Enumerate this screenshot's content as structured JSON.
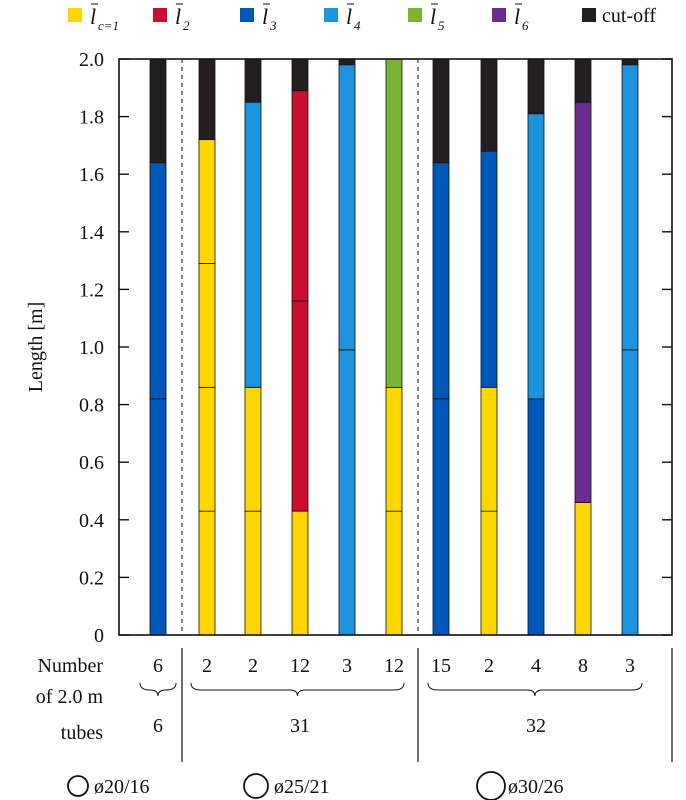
{
  "chart_data": {
    "type": "bar",
    "stacked": true,
    "ylabel": "Length [m]",
    "ylim": [
      0,
      2.0
    ],
    "yticks": [
      "0",
      "0.2",
      "0.4",
      "0.6",
      "0.8",
      "1.0",
      "1.2",
      "1.4",
      "1.6",
      "1.8",
      "2.0"
    ],
    "grid": false,
    "legend_position": "top",
    "legend": [
      {
        "key": "l1",
        "label": "l",
        "sub": "c=1",
        "color": "#FFD500"
      },
      {
        "key": "l2",
        "label": "l",
        "sub": "2",
        "color": "#C8102E"
      },
      {
        "key": "l3",
        "label": "l",
        "sub": "3",
        "color": "#0057B8"
      },
      {
        "key": "l4",
        "label": "l",
        "sub": "4",
        "color": "#1C93DC"
      },
      {
        "key": "l5",
        "label": "l",
        "sub": "5",
        "color": "#7AB532"
      },
      {
        "key": "l6",
        "label": "l",
        "sub": "6",
        "color": "#6A2C8E"
      },
      {
        "key": "cut",
        "label": "cut-off",
        "sub": "",
        "color": "#231F20"
      }
    ],
    "bars": [
      {
        "count": "6",
        "segments": [
          {
            "k": "l3",
            "v": 0.82
          },
          {
            "k": "l3",
            "v": 0.82
          },
          {
            "k": "cut",
            "v": 0.36
          }
        ]
      },
      {
        "count": "2",
        "segments": [
          {
            "k": "l1",
            "v": 0.43
          },
          {
            "k": "l1",
            "v": 0.43
          },
          {
            "k": "l1",
            "v": 0.43
          },
          {
            "k": "l1",
            "v": 0.43
          },
          {
            "k": "cut",
            "v": 0.28
          }
        ]
      },
      {
        "count": "2",
        "segments": [
          {
            "k": "l1",
            "v": 0.43
          },
          {
            "k": "l1",
            "v": 0.43
          },
          {
            "k": "l4",
            "v": 0.99
          },
          {
            "k": "cut",
            "v": 0.15
          }
        ]
      },
      {
        "count": "12",
        "segments": [
          {
            "k": "l1",
            "v": 0.43
          },
          {
            "k": "l2",
            "v": 0.73
          },
          {
            "k": "l2",
            "v": 0.73
          },
          {
            "k": "cut",
            "v": 0.11
          }
        ]
      },
      {
        "count": "3",
        "segments": [
          {
            "k": "l4",
            "v": 0.99
          },
          {
            "k": "l4",
            "v": 0.99
          },
          {
            "k": "cut",
            "v": 0.02
          }
        ]
      },
      {
        "count": "12",
        "segments": [
          {
            "k": "l1",
            "v": 0.43
          },
          {
            "k": "l1",
            "v": 0.43
          },
          {
            "k": "l5",
            "v": 1.14
          }
        ]
      },
      {
        "count": "15",
        "segments": [
          {
            "k": "l3",
            "v": 0.82
          },
          {
            "k": "l3",
            "v": 0.82
          },
          {
            "k": "cut",
            "v": 0.36
          }
        ]
      },
      {
        "count": "2",
        "segments": [
          {
            "k": "l1",
            "v": 0.43
          },
          {
            "k": "l1",
            "v": 0.43
          },
          {
            "k": "l3",
            "v": 0.82
          },
          {
            "k": "cut",
            "v": 0.32
          }
        ]
      },
      {
        "count": "4",
        "segments": [
          {
            "k": "l3",
            "v": 0.82
          },
          {
            "k": "l4",
            "v": 0.99
          },
          {
            "k": "cut",
            "v": 0.19
          }
        ]
      },
      {
        "count": "8",
        "segments": [
          {
            "k": "l1",
            "v": 0.46
          },
          {
            "k": "l6",
            "v": 1.39
          },
          {
            "k": "cut",
            "v": 0.15
          }
        ]
      },
      {
        "count": "3",
        "segments": [
          {
            "k": "l4",
            "v": 0.99
          },
          {
            "k": "l4",
            "v": 0.99
          },
          {
            "k": "cut",
            "v": 0.02
          }
        ]
      }
    ],
    "groups": [
      {
        "total": "6",
        "diameter": "ø20/16"
      },
      {
        "total": "31",
        "diameter": "ø25/21"
      },
      {
        "total": "32",
        "diameter": "ø30/26"
      }
    ],
    "row_label": [
      "Number",
      "of 2.0 m",
      "tubes"
    ]
  }
}
